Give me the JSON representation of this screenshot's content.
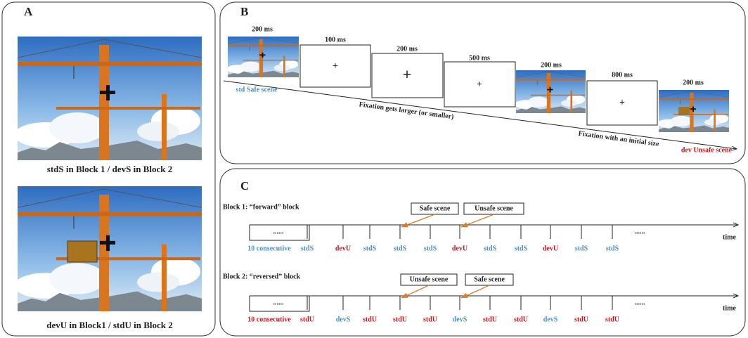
{
  "panel_a": {
    "label": "A",
    "captions": [
      "stdS in Block 1 / devS in Block 2",
      "devU in Block1 / stdU in Block 2"
    ]
  },
  "panel_b": {
    "label": "B",
    "durations": [
      "200 ms",
      "100 ms",
      "200 ms",
      "500 ms",
      "200 ms",
      "800 ms",
      "200 ms"
    ],
    "start_label": "std Safe scene",
    "end_label": "dev Unsafe scene",
    "line_labels": [
      "Fixation gets larger (or smaller)",
      "Fixation with an initial size"
    ]
  },
  "panel_c": {
    "label": "C",
    "time": "time",
    "ellipsis": "......",
    "blocks": [
      {
        "title": "Block 1: “forward” block",
        "callouts": [
          "Safe scene",
          "Unsafe scene"
        ],
        "trials": [
          {
            "text": "10 consecutive",
            "color": "#4a8fc7"
          },
          {
            "text": "stdS",
            "color": "#4a8fc7"
          },
          {
            "text": "devU",
            "color": "#c8161d"
          },
          {
            "text": "stdS",
            "color": "#4a8fc7"
          },
          {
            "text": "stdS",
            "color": "#4a8fc7"
          },
          {
            "text": "stdS",
            "color": "#4a8fc7"
          },
          {
            "text": "devU",
            "color": "#c8161d"
          },
          {
            "text": "stdS",
            "color": "#4a8fc7"
          },
          {
            "text": "stdS",
            "color": "#4a8fc7"
          },
          {
            "text": "devU",
            "color": "#c8161d"
          },
          {
            "text": "stdS",
            "color": "#4a8fc7"
          },
          {
            "text": "stdS",
            "color": "#4a8fc7"
          }
        ]
      },
      {
        "title": "Block 2: “reversed” block",
        "callouts": [
          "Unsafe  scene",
          "Safe scene"
        ],
        "trials": [
          {
            "text": "10 consecutive",
            "color": "#c8161d"
          },
          {
            "text": "stdU",
            "color": "#c8161d"
          },
          {
            "text": "devS",
            "color": "#4a8fc7"
          },
          {
            "text": "stdU",
            "color": "#c8161d"
          },
          {
            "text": "stdU",
            "color": "#c8161d"
          },
          {
            "text": "stdU",
            "color": "#c8161d"
          },
          {
            "text": "devS",
            "color": "#4a8fc7"
          },
          {
            "text": "stdU",
            "color": "#c8161d"
          },
          {
            "text": "stdU",
            "color": "#c8161d"
          },
          {
            "text": "devS",
            "color": "#4a8fc7"
          },
          {
            "text": "stdU",
            "color": "#c8161d"
          },
          {
            "text": "stdU",
            "color": "#c8161d"
          }
        ]
      }
    ]
  }
}
